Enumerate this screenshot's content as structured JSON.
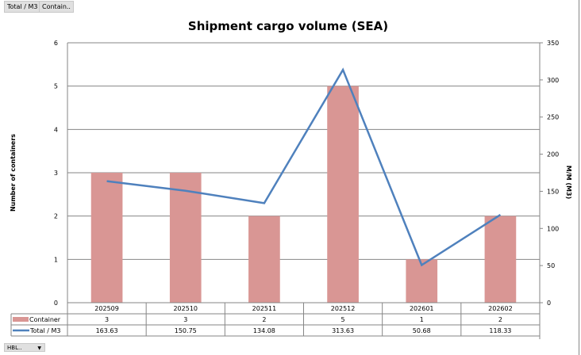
{
  "filter_buttons": [
    "Total / M3",
    "Contain.."
  ],
  "bottom_filter": {
    "label": "HBL..",
    "icon": "dropdown-arrow-icon"
  },
  "chart_data": {
    "type": "bar+line",
    "title": "Shipment cargo volume (SEA)",
    "categories": [
      "202509",
      "202510",
      "202511",
      "202512",
      "202601",
      "202602"
    ],
    "series": [
      {
        "name": "Container",
        "type": "bar",
        "axis": "left",
        "color": "#d99694",
        "values": [
          3,
          3,
          2,
          5,
          1,
          2
        ],
        "labels": [
          "3",
          "3",
          "2",
          "5",
          "1",
          "2"
        ]
      },
      {
        "name": "Total / M3",
        "type": "line",
        "axis": "right",
        "color": "#4f81bd",
        "values": [
          163.63,
          150.75,
          134.08,
          313.63,
          50.68,
          118.33
        ],
        "labels": [
          "163.63",
          "150.75",
          "134.08",
          "313.63",
          "50.68",
          "118.33"
        ]
      }
    ],
    "ylabel": "Number of containers",
    "y2label": "M/M (M3)",
    "ylim": [
      0,
      6
    ],
    "y2lim": [
      0,
      350
    ],
    "yticks": [
      "0",
      "1",
      "2",
      "3",
      "4",
      "5",
      "6"
    ],
    "y2ticks": [
      "0",
      "50",
      "100",
      "150",
      "200",
      "250",
      "300",
      "350"
    ],
    "grid": true,
    "legend": "data-table-bottom"
  }
}
